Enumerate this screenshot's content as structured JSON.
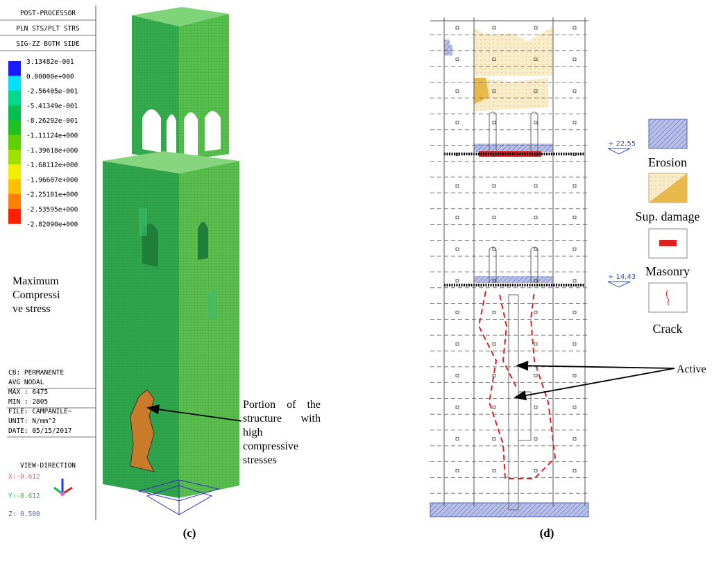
{
  "panel_c": {
    "legend": {
      "header": [
        "POST-PROCESSOR",
        "PLN STS/PLT STRS",
        "SIG-ZZ BOTH SIDE"
      ],
      "values": [
        "3.13482e-001",
        "0.00000e+000",
        "-2.56405e-001",
        "-5.41349e-001",
        "-8.26292e-001",
        "-1.11124e+000",
        "-1.39618e+000",
        "-1.68112e+000",
        "-1.96607e+000",
        "-2.25101e+000",
        "-2.53595e+000",
        "-2.82090e+000"
      ],
      "info": [
        "CB: PERMANENTE",
        "AVG NODAL"
      ],
      "stats": [
        "MAX : 6475",
        "MIN : 2805"
      ],
      "file_info": [
        "FILE: CAMPANILE~",
        "UNIT: N/mm^2",
        "DATE: 05/15/2017"
      ],
      "view_direction": {
        "title": "VIEW-DIRECTION",
        "x": "X:-0.612",
        "y": "Y:-0.612",
        "z": "Z: 0.500"
      }
    },
    "label": [
      "Maximum",
      "Compressi",
      "ve stress"
    ],
    "annotation": "Portion of the structure with high compressive stresses",
    "caption": "(c)"
  },
  "panel_d": {
    "elevations": [
      "+ 22,55",
      "+ 14,43"
    ],
    "legend": [
      "Erosion",
      "Sup. damage",
      "Masonry",
      "Crack"
    ],
    "annotation": "Active",
    "caption": "(d)"
  }
}
